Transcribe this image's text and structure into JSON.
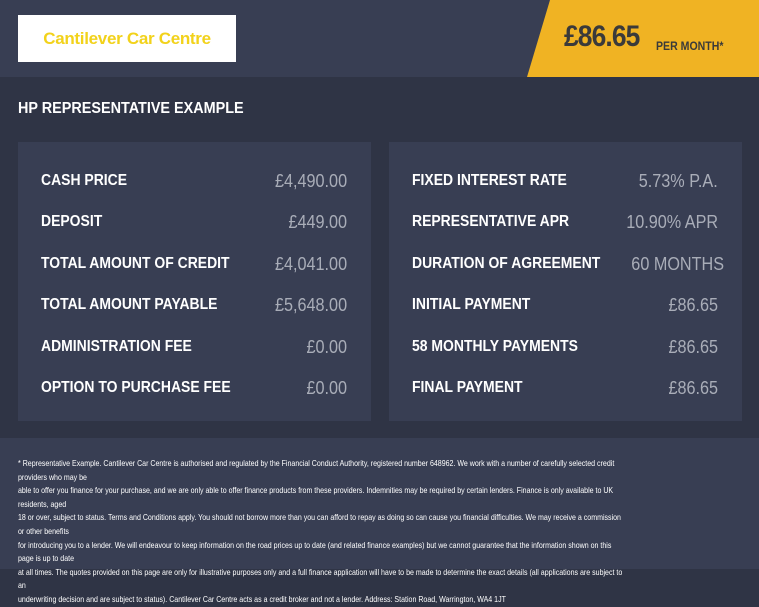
{
  "header": {
    "logo_text": "Cantilever Car Centre",
    "price": "£86.65",
    "per_month": "PER MONTH*",
    "accent": "#f0b323"
  },
  "title": "HP REPRESENTATIVE EXAMPLE",
  "left": [
    {
      "label": "CASH PRICE",
      "value": "£4,490.00"
    },
    {
      "label": "DEPOSIT",
      "value": "£449.00"
    },
    {
      "label": "TOTAL AMOUNT OF CREDIT",
      "value": "£4,041.00"
    },
    {
      "label": "TOTAL AMOUNT PAYABLE",
      "value": "£5,648.00"
    },
    {
      "label": "ADMINISTRATION FEE",
      "value": "£0.00"
    },
    {
      "label": "OPTION TO PURCHASE FEE",
      "value": "£0.00"
    }
  ],
  "right": [
    {
      "label": "FIXED INTEREST RATE",
      "value": "5.73% P.A."
    },
    {
      "label": "REPRESENTATIVE APR",
      "value": "10.90% APR"
    },
    {
      "label": "DURATION OF AGREEMENT",
      "value": "60 MONTHS"
    },
    {
      "label": "INITIAL PAYMENT",
      "value": "£86.65"
    },
    {
      "label": "58 MONTHLY PAYMENTS",
      "value": "£86.65"
    },
    {
      "label": "FINAL PAYMENT",
      "value": "£86.65"
    }
  ],
  "disclaimer": "* Representative Example. Cantilever Car Centre is authorised and regulated by the Financial Conduct Authority, registered number 648962. We work with a number of carefully selected credit providers who may be\nable to offer you finance for your purchase, and we are only able to offer finance products from these providers. Indemnities may be required by certain lenders. Finance is only available to UK residents, aged\n18 or over, subject to status. Terms and Conditions apply. You should not borrow more than you can afford to repay as doing so can cause you financial difficulties. We may receive a commission or other benefits\nfor introducing you to a lender. We will endeavour to keep information on the road prices up to date (and related finance examples) but we cannot guarantee that the information shown on this page is up to date\nat all times. The quotes provided on this page are only for illustrative purposes only and a full finance application will have to be made to determine the exact details (all applications are subject to an\nunderwriting decision and are subject to status). Cantilever Car Centre acts as a credit broker and not a lender. Address: Station Road, Warrington, WA4 1JT"
}
